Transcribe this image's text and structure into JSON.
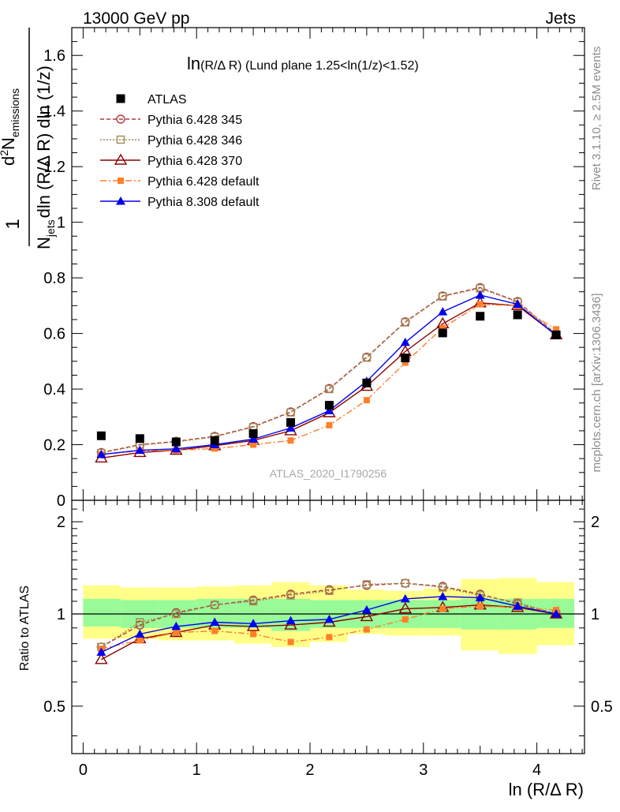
{
  "header": {
    "left": "13000 GeV pp",
    "right": "Jets"
  },
  "side_labels": {
    "rivet": "Rivet 3.1.10, ≥ 2.5M events",
    "mcplots": "mcplots.cern.ch [arXiv:1306.3436]"
  },
  "watermark": "ATLAS_2020_I1790256",
  "plot_title": {
    "prefix": "ln",
    "main": "(R/Δ R)",
    "rest": " (Lund plane 1.25<ln(1/z)<1.52)"
  },
  "colors": {
    "atlas": "#000000",
    "py345": "#b03a3a",
    "py346": "#a08850",
    "py370": "#8b0000",
    "py6def": "#ff7f2a",
    "py8def": "#0000ee",
    "band_inner": "#98fb98",
    "band_outer": "#ffff88"
  },
  "chart_data": [
    {
      "type": "scatter",
      "name": "main",
      "ylabel": {
        "one": "1",
        "njets": "N",
        "njets_sub": "jets",
        "dln": "dln (R/Δ R) dln (1/z)",
        "d2": "d",
        "d2_sup": "2",
        "nem": "N",
        "nem_sub": "emissions"
      },
      "ylim": [
        0,
        1.7
      ],
      "xlim": [
        -0.1,
        4.42
      ],
      "yticks": [
        "0",
        "0.2",
        "0.4",
        "0.6",
        "0.8",
        "1",
        "1.2",
        "1.4",
        "1.6"
      ],
      "x": [
        0.16,
        0.5,
        0.82,
        1.16,
        1.5,
        1.83,
        2.17,
        2.5,
        2.84,
        3.17,
        3.5,
        3.83,
        4.17
      ],
      "series": [
        {
          "name": "ATLAS",
          "key": "atlas",
          "values": [
            0.232,
            0.222,
            0.21,
            0.215,
            0.24,
            0.28,
            0.342,
            0.422,
            0.512,
            0.602,
            0.662,
            0.667,
            0.595
          ]
        },
        {
          "name": "Pythia 6.428 345",
          "key": "py345",
          "values": [
            0.172,
            0.2,
            0.212,
            0.23,
            0.265,
            0.318,
            0.402,
            0.515,
            0.642,
            0.735,
            0.765,
            0.715,
            0.598
          ]
        },
        {
          "name": "Pythia 6.428 346",
          "key": "py346",
          "values": [
            0.17,
            0.198,
            0.21,
            0.228,
            0.263,
            0.316,
            0.4,
            0.513,
            0.64,
            0.733,
            0.762,
            0.713,
            0.596
          ]
        },
        {
          "name": "Pythia 6.428 370",
          "key": "py370",
          "values": [
            0.152,
            0.172,
            0.18,
            0.196,
            0.215,
            0.25,
            0.315,
            0.41,
            0.535,
            0.635,
            0.71,
            0.7,
            0.595
          ]
        },
        {
          "name": "Pythia 6.428 default",
          "key": "py6def",
          "values": [
            0.165,
            0.178,
            0.18,
            0.186,
            0.2,
            0.215,
            0.27,
            0.36,
            0.495,
            0.62,
            0.705,
            0.7,
            0.615
          ]
        },
        {
          "name": "Pythia 8.308 default",
          "key": "py8def",
          "values": [
            0.165,
            0.18,
            0.185,
            0.2,
            0.22,
            0.26,
            0.322,
            0.428,
            0.568,
            0.678,
            0.738,
            0.705,
            0.593
          ]
        }
      ]
    },
    {
      "type": "line",
      "name": "ratio",
      "ylabel": "Ratio to ATLAS",
      "xlabel": "ln (R/Δ R)",
      "ylim": [
        0.35,
        2.35
      ],
      "xlim": [
        -0.1,
        4.42
      ],
      "log_y": true,
      "yticks": [
        "0.5",
        "1",
        "2"
      ],
      "xticks": [
        "0",
        "1",
        "2",
        "3",
        "4"
      ],
      "x": [
        0.16,
        0.5,
        0.82,
        1.16,
        1.5,
        1.83,
        2.17,
        2.5,
        2.84,
        3.17,
        3.5,
        3.83,
        4.17
      ],
      "band_edges": [
        0.0,
        0.33,
        0.66,
        1.0,
        1.33,
        1.66,
        2.0,
        2.33,
        2.66,
        3.0,
        3.33,
        3.66,
        4.0,
        4.33
      ],
      "band_inner_lo": [
        0.91,
        0.9,
        0.9,
        0.9,
        0.9,
        0.88,
        0.9,
        0.9,
        0.9,
        0.9,
        0.89,
        0.89,
        0.9
      ],
      "band_inner_hi": [
        1.12,
        1.11,
        1.11,
        1.12,
        1.12,
        1.12,
        1.11,
        1.11,
        1.11,
        1.11,
        1.12,
        1.12,
        1.12
      ],
      "band_outer_lo": [
        0.83,
        0.83,
        0.82,
        0.82,
        0.8,
        0.78,
        0.81,
        0.86,
        0.85,
        0.85,
        0.76,
        0.74,
        0.79
      ],
      "band_outer_hi": [
        1.24,
        1.22,
        1.22,
        1.23,
        1.24,
        1.27,
        1.24,
        1.2,
        1.19,
        1.21,
        1.3,
        1.31,
        1.27
      ],
      "series": [
        {
          "name": "Pythia 6.428 345",
          "key": "py345",
          "values": [
            0.78,
            0.92,
            1.01,
            1.07,
            1.11,
            1.16,
            1.2,
            1.24,
            1.26,
            1.23,
            1.16,
            1.08,
            1.0
          ]
        },
        {
          "name": "Pythia 6.428 346",
          "key": "py346",
          "values": [
            0.78,
            0.94,
            1.0,
            1.07,
            1.1,
            1.15,
            1.19,
            1.25,
            1.26,
            1.22,
            1.15,
            1.09,
            1.0
          ]
        },
        {
          "name": "Pythia 6.428 370",
          "key": "py370",
          "values": [
            0.71,
            0.83,
            0.87,
            0.92,
            0.91,
            0.92,
            0.94,
            0.98,
            1.04,
            1.05,
            1.07,
            1.05,
            1.0
          ]
        },
        {
          "name": "Pythia 6.428 default",
          "key": "py6def",
          "values": [
            0.77,
            0.82,
            0.87,
            0.88,
            0.86,
            0.81,
            0.84,
            0.89,
            0.96,
            1.04,
            1.06,
            1.05,
            1.03
          ]
        },
        {
          "name": "Pythia 8.308 default",
          "key": "py8def",
          "values": [
            0.75,
            0.86,
            0.91,
            0.94,
            0.93,
            0.95,
            0.96,
            1.03,
            1.12,
            1.14,
            1.13,
            1.06,
            1.0
          ]
        }
      ]
    }
  ]
}
